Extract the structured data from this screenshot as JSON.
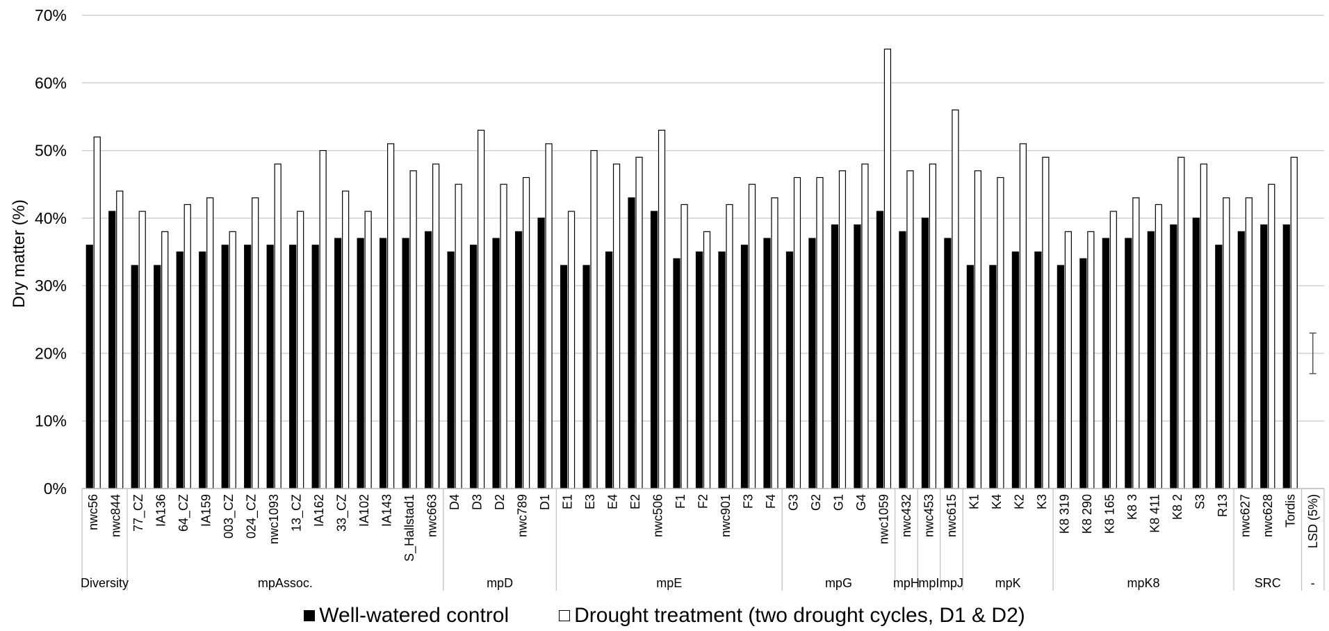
{
  "chart_data": {
    "type": "bar",
    "ylabel": "Dry matter (%)",
    "xlabel": "",
    "ylim": [
      0,
      70
    ],
    "yticks": [
      "0%",
      "10%",
      "20%",
      "30%",
      "40%",
      "50%",
      "60%",
      "70%"
    ],
    "grid": true,
    "legend_position": "bottom",
    "categories": [
      "nwc56",
      "nwc844",
      "77_CZ",
      "IA136",
      "64_CZ",
      "IA159",
      "003_CZ",
      "024_CZ",
      "nwc1093",
      "13_CZ",
      "IA162",
      "33_CZ",
      "IA102",
      "IA143",
      "S_Hallstad1",
      "nwc663",
      "D4",
      "D3",
      "D2",
      "nwc789",
      "D1",
      "E1",
      "E3",
      "E4",
      "E2",
      "nwc506",
      "F1",
      "F2",
      "nwc901",
      "F3",
      "F4",
      "G3",
      "G2",
      "G1",
      "G4",
      "nwc1059",
      "nwc432",
      "nwc453",
      "nwc615",
      "K1",
      "K4",
      "K2",
      "K3",
      "K8 319",
      "K8 290",
      "K8 165",
      "K8 3",
      "K8 411",
      "K8 2",
      "S3",
      "R13",
      "nwc627",
      "nwc628",
      "Tordis",
      "LSD (5%)"
    ],
    "groups": [
      {
        "label": "Diversity",
        "count": 2
      },
      {
        "label": "mpAssoc.",
        "count": 14
      },
      {
        "label": "mpD",
        "count": 5
      },
      {
        "label": "mpE",
        "count": 10
      },
      {
        "label": "mpG",
        "count": 5
      },
      {
        "label": "mpH",
        "count": 1
      },
      {
        "label": "mpI",
        "count": 1
      },
      {
        "label": "mpJ",
        "count": 1
      },
      {
        "label": "mpK",
        "count": 4
      },
      {
        "label": "mpK8",
        "count": 8
      },
      {
        "label": "SRC",
        "count": 3
      },
      {
        "label": "-",
        "count": 1
      }
    ],
    "series": [
      {
        "name": "Well-watered control",
        "color": "#000000",
        "values": [
          36,
          41,
          33,
          33,
          35,
          35,
          36,
          36,
          36,
          36,
          36,
          37,
          37,
          37,
          37,
          38,
          35,
          36,
          37,
          38,
          40,
          33,
          33,
          35,
          43,
          41,
          34,
          35,
          35,
          36,
          37,
          35,
          37,
          39,
          39,
          41,
          38,
          40,
          37,
          33,
          33,
          35,
          35,
          33,
          34,
          37,
          37,
          38,
          39,
          40,
          36,
          38,
          39,
          39,
          null
        ]
      },
      {
        "name": "Drought treatment (two drought cycles, D1 & D2)",
        "color": "#ffffff",
        "values": [
          52,
          44,
          41,
          38,
          42,
          43,
          38,
          43,
          48,
          41,
          50,
          44,
          41,
          51,
          47,
          48,
          45,
          53,
          45,
          46,
          51,
          41,
          50,
          48,
          49,
          53,
          42,
          38,
          42,
          45,
          43,
          46,
          46,
          47,
          48,
          65,
          47,
          48,
          56,
          47,
          46,
          51,
          49,
          38,
          38,
          41,
          43,
          42,
          49,
          48,
          43,
          43,
          45,
          49,
          null
        ]
      }
    ],
    "lsd_error_bar": {
      "category": "LSD (5%)",
      "center": 20,
      "low": 17,
      "high": 23
    }
  },
  "legend": {
    "well_watered_label": "Well-watered control",
    "drought_label": "Drought treatment (two drought cycles, D1 & D2)"
  }
}
